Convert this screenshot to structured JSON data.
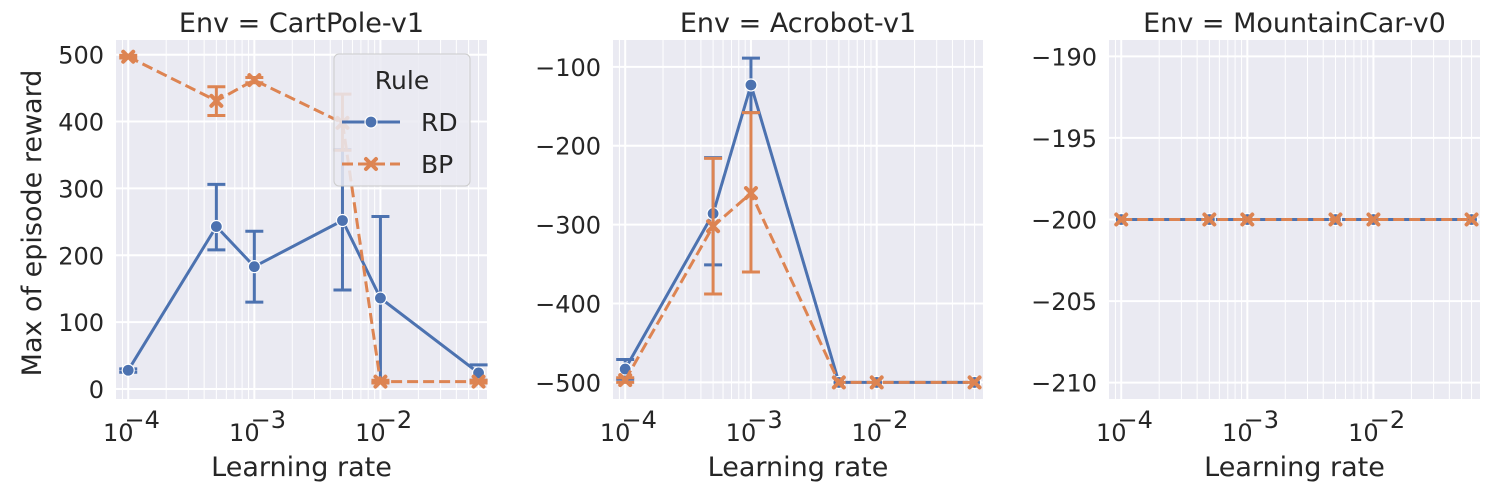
{
  "figure": {
    "ylabel": "Max of episode reward",
    "legend_title": "Rule",
    "colors": {
      "RD": "#4c72b0",
      "BP": "#dd8452",
      "panel_bg": "#eaeaf2",
      "grid": "#ffffff"
    }
  },
  "chart_data": [
    {
      "type": "line",
      "title": "Env = CartPole-v1",
      "xlabel": "Learning rate",
      "ylabel": "Max of episode reward",
      "xscale": "log",
      "xlim": [
        8e-05,
        0.07
      ],
      "ylim": [
        -15,
        522
      ],
      "x_ticks": [
        0.0001,
        0.001,
        0.01
      ],
      "x_tick_labels": [
        "10",
        "10",
        "10"
      ],
      "x_tick_exps": [
        "−4",
        "−3",
        "−2"
      ],
      "y_ticks": [
        0,
        100,
        200,
        300,
        400,
        500
      ],
      "y_tick_labels": [
        "0",
        "100",
        "200",
        "300",
        "400",
        "500"
      ],
      "legend": "top-right",
      "series": [
        {
          "name": "RD",
          "style": "solid",
          "marker": "circle",
          "x": [
            0.0001,
            0.0005,
            0.001,
            0.005,
            0.01,
            0.06
          ],
          "y": [
            28,
            243,
            183,
            252,
            136,
            24
          ],
          "err_low": [
            25,
            208,
            130,
            148,
            10,
            13
          ],
          "err_high": [
            30,
            306,
            236,
            358,
            258,
            36
          ]
        },
        {
          "name": "BP",
          "style": "dashed",
          "marker": "x",
          "x": [
            0.0001,
            0.0005,
            0.001,
            0.005,
            0.01,
            0.06
          ],
          "y": [
            497,
            431,
            462,
            398,
            11,
            11
          ],
          "err_low": [
            495,
            409,
            458,
            357,
            9,
            9
          ],
          "err_high": [
            499,
            452,
            466,
            441,
            13,
            13
          ]
        }
      ]
    },
    {
      "type": "line",
      "title": "Env = Acrobot-v1",
      "xlabel": "Learning rate",
      "ylabel": "",
      "xscale": "log",
      "xlim": [
        8e-05,
        0.07
      ],
      "ylim": [
        -521,
        -66
      ],
      "x_ticks": [
        0.0001,
        0.001,
        0.01
      ],
      "x_tick_labels": [
        "10",
        "10",
        "10"
      ],
      "x_tick_exps": [
        "−4",
        "−3",
        "−2"
      ],
      "y_ticks": [
        -500,
        -400,
        -300,
        -200,
        -100
      ],
      "y_tick_labels": [
        "−500",
        "−400",
        "−300",
        "−200",
        "−100"
      ],
      "series": [
        {
          "name": "RD",
          "style": "solid",
          "marker": "circle",
          "x": [
            0.0001,
            0.0005,
            0.001,
            0.005,
            0.01,
            0.06
          ],
          "y": [
            -483,
            -286,
            -123,
            -500,
            -500,
            -500
          ],
          "err_low": [
            -496,
            -351,
            -158,
            -500,
            -500,
            -500
          ],
          "err_high": [
            -471,
            -215,
            -89,
            -500,
            -500,
            -500
          ]
        },
        {
          "name": "BP",
          "style": "dashed",
          "marker": "x",
          "x": [
            0.0001,
            0.0005,
            0.001,
            0.005,
            0.01,
            0.06
          ],
          "y": [
            -497,
            -302,
            -260,
            -500,
            -500,
            -500
          ],
          "err_low": [
            -500,
            -388,
            -360,
            -500,
            -500,
            -500
          ],
          "err_high": [
            -494,
            -216,
            -158,
            -500,
            -500,
            -500
          ]
        }
      ]
    },
    {
      "type": "line",
      "title": "Env = MountainCar-v0",
      "xlabel": "Learning rate",
      "ylabel": "",
      "xscale": "log",
      "xlim": [
        8e-05,
        0.07
      ],
      "ylim": [
        -211,
        -189
      ],
      "x_ticks": [
        0.0001,
        0.001,
        0.01
      ],
      "x_tick_labels": [
        "10",
        "10",
        "10"
      ],
      "x_tick_exps": [
        "−4",
        "−3",
        "−2"
      ],
      "y_ticks": [
        -210,
        -205,
        -200,
        -195,
        -190
      ],
      "y_tick_labels": [
        "−210",
        "−205",
        "−200",
        "−195",
        "−190"
      ],
      "series": [
        {
          "name": "RD",
          "style": "solid",
          "marker": "circle",
          "x": [
            0.0001,
            0.0005,
            0.001,
            0.005,
            0.01,
            0.06
          ],
          "y": [
            -200,
            -200,
            -200,
            -200,
            -200,
            -200
          ],
          "err_low": [
            -200,
            -200,
            -200,
            -200,
            -200,
            -200
          ],
          "err_high": [
            -200,
            -200,
            -200,
            -200,
            -200,
            -200
          ]
        },
        {
          "name": "BP",
          "style": "dashed",
          "marker": "x",
          "x": [
            0.0001,
            0.0005,
            0.001,
            0.005,
            0.01,
            0.06
          ],
          "y": [
            -200,
            -200,
            -200,
            -200,
            -200,
            -200
          ],
          "err_low": [
            -200,
            -200,
            -200,
            -200,
            -200,
            -200
          ],
          "err_high": [
            -200,
            -200,
            -200,
            -200,
            -200,
            -200
          ]
        }
      ]
    }
  ]
}
